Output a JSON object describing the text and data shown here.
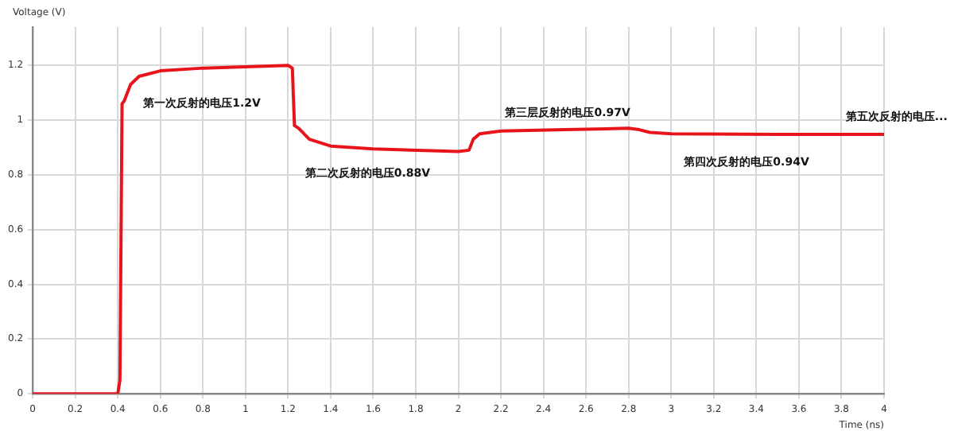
{
  "chart_data": {
    "type": "line",
    "xlabel": "Time (ns)",
    "ylabel": "Voltage (V)",
    "x": [
      0,
      0.4,
      0.41,
      0.42,
      0.43,
      0.46,
      0.5,
      0.6,
      0.8,
      1.0,
      1.2,
      1.22,
      1.23,
      1.25,
      1.3,
      1.4,
      1.6,
      2.0,
      2.05,
      2.07,
      2.1,
      2.2,
      2.5,
      2.8,
      2.85,
      2.9,
      3.0,
      3.5,
      4
    ],
    "series": [
      {
        "color": "#e8141c",
        "values": [
          0,
          0,
          0.05,
          1.06,
          1.07,
          1.13,
          1.16,
          1.18,
          1.19,
          1.195,
          1.2,
          1.19,
          0.98,
          0.97,
          0.93,
          0.905,
          0.895,
          0.885,
          0.89,
          0.93,
          0.95,
          0.96,
          0.965,
          0.97,
          0.965,
          0.955,
          0.95,
          0.948,
          0.948
        ]
      }
    ],
    "xlim": [
      0,
      4
    ],
    "xticks": [
      0,
      0.2,
      0.4,
      0.6,
      0.8,
      1,
      1.2,
      1.4,
      1.6,
      1.8,
      2,
      2.2,
      2.4,
      2.6,
      2.8,
      3,
      3.2,
      3.4,
      3.6,
      3.8,
      4
    ],
    "ylim": [
      0,
      1.34
    ],
    "yticks": [
      0,
      0.2,
      0.4,
      0.6,
      0.8,
      1,
      1.2
    ],
    "grid": true,
    "legend": false,
    "marker": "none",
    "line_style": "solid",
    "annotations": [
      "第一次反射的电压1.2V",
      "第二次反射的电压0.88V",
      "第三层反射的电压0.97V",
      "第四次反射的电压0.94V",
      "第五次反射的电压..."
    ]
  }
}
